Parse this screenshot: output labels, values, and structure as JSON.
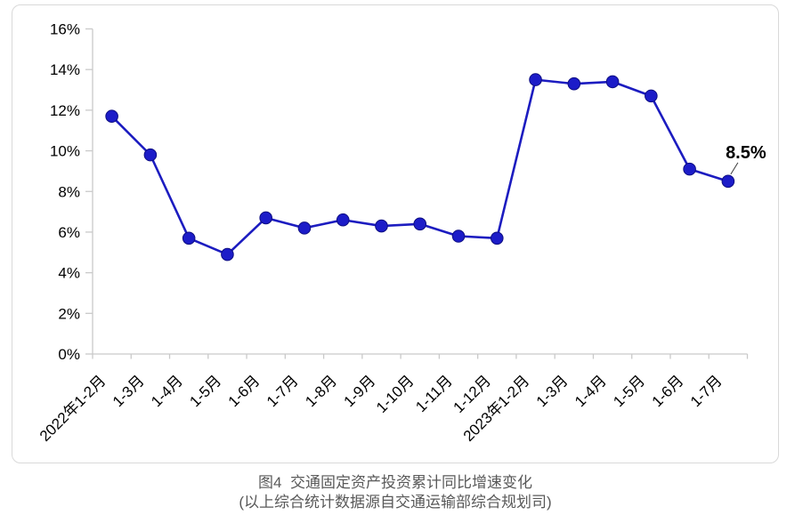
{
  "chart_data": {
    "type": "line",
    "title": "图4  交通固定资产投资累计同比增速变化",
    "subtitle": "(以上综合统计数据源自交通运输部综合规划司)",
    "categories": [
      "2022年1-2月",
      "1-3月",
      "1-4月",
      "1-5月",
      "1-6月",
      "1-7月",
      "1-8月",
      "1-9月",
      "1-10月",
      "1-11月",
      "1-12月",
      "2023年1-2月",
      "1-3月",
      "1-4月",
      "1-5月",
      "1-6月",
      "1-7月"
    ],
    "series": [
      {
        "values": [
          11.7,
          9.8,
          5.7,
          4.9,
          6.7,
          6.2,
          6.6,
          6.3,
          6.4,
          5.8,
          5.7,
          13.5,
          13.3,
          13.4,
          12.7,
          9.1,
          8.5
        ]
      }
    ],
    "ylim": [
      0,
      16
    ],
    "ytick_step": 2,
    "y_tick_labels": [
      "0%",
      "2%",
      "4%",
      "6%",
      "8%",
      "10%",
      "12%",
      "14%",
      "16%"
    ],
    "grid": false,
    "legend_position": "none",
    "annotation": {
      "text": "8.5%",
      "point_index": 16
    },
    "colors": {
      "line": "#1c1cc0",
      "marker_fill": "#1c1cc8",
      "marker_edge": "#0e0e82",
      "axis": "#c9c9c9",
      "tick_label": "#000000",
      "annotation": "#000000",
      "leader_line": "#3a3a3a",
      "caption": "#595959",
      "panel_border": "#d9d9d9"
    }
  }
}
